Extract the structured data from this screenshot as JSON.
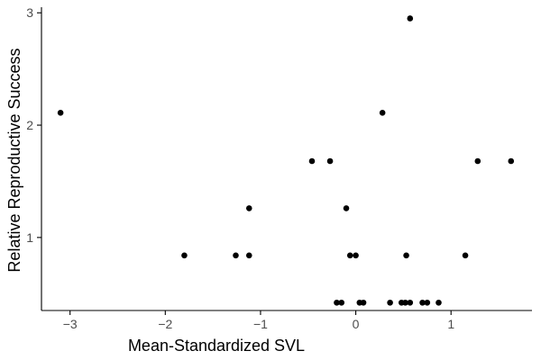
{
  "chart_data": {
    "type": "scatter",
    "title": "",
    "xlabel": "Mean-Standardized SVL",
    "ylabel": "Relative Reproductive Success",
    "xlim": [
      -3.3,
      1.85
    ],
    "ylim": [
      0.35,
      3.05
    ],
    "x_ticks": [
      -3,
      -2,
      -1,
      0,
      1
    ],
    "y_ticks": [
      1,
      2,
      3
    ],
    "grid": false,
    "legend": "none",
    "colors": {
      "point": "#000000",
      "axis": "#000000",
      "tick_label": "#4d4d4d",
      "background": "#ffffff"
    },
    "points": [
      {
        "x": -3.1,
        "y": 2.11
      },
      {
        "x": -1.8,
        "y": 0.84
      },
      {
        "x": -1.26,
        "y": 0.84
      },
      {
        "x": -1.12,
        "y": 0.84
      },
      {
        "x": -1.12,
        "y": 1.26
      },
      {
        "x": -0.46,
        "y": 1.68
      },
      {
        "x": -0.27,
        "y": 1.68
      },
      {
        "x": -0.2,
        "y": 0.42
      },
      {
        "x": -0.15,
        "y": 0.42
      },
      {
        "x": -0.1,
        "y": 1.26
      },
      {
        "x": -0.06,
        "y": 0.84
      },
      {
        "x": 0.0,
        "y": 0.84
      },
      {
        "x": 0.04,
        "y": 0.42
      },
      {
        "x": 0.08,
        "y": 0.42
      },
      {
        "x": 0.28,
        "y": 2.11
      },
      {
        "x": 0.36,
        "y": 0.42
      },
      {
        "x": 0.48,
        "y": 0.42
      },
      {
        "x": 0.52,
        "y": 0.42
      },
      {
        "x": 0.53,
        "y": 0.84
      },
      {
        "x": 0.57,
        "y": 2.95
      },
      {
        "x": 0.57,
        "y": 0.42
      },
      {
        "x": 0.7,
        "y": 0.42
      },
      {
        "x": 0.75,
        "y": 0.42
      },
      {
        "x": 0.87,
        "y": 0.42
      },
      {
        "x": 1.15,
        "y": 0.84
      },
      {
        "x": 1.28,
        "y": 1.68
      },
      {
        "x": 1.63,
        "y": 1.68
      }
    ]
  }
}
